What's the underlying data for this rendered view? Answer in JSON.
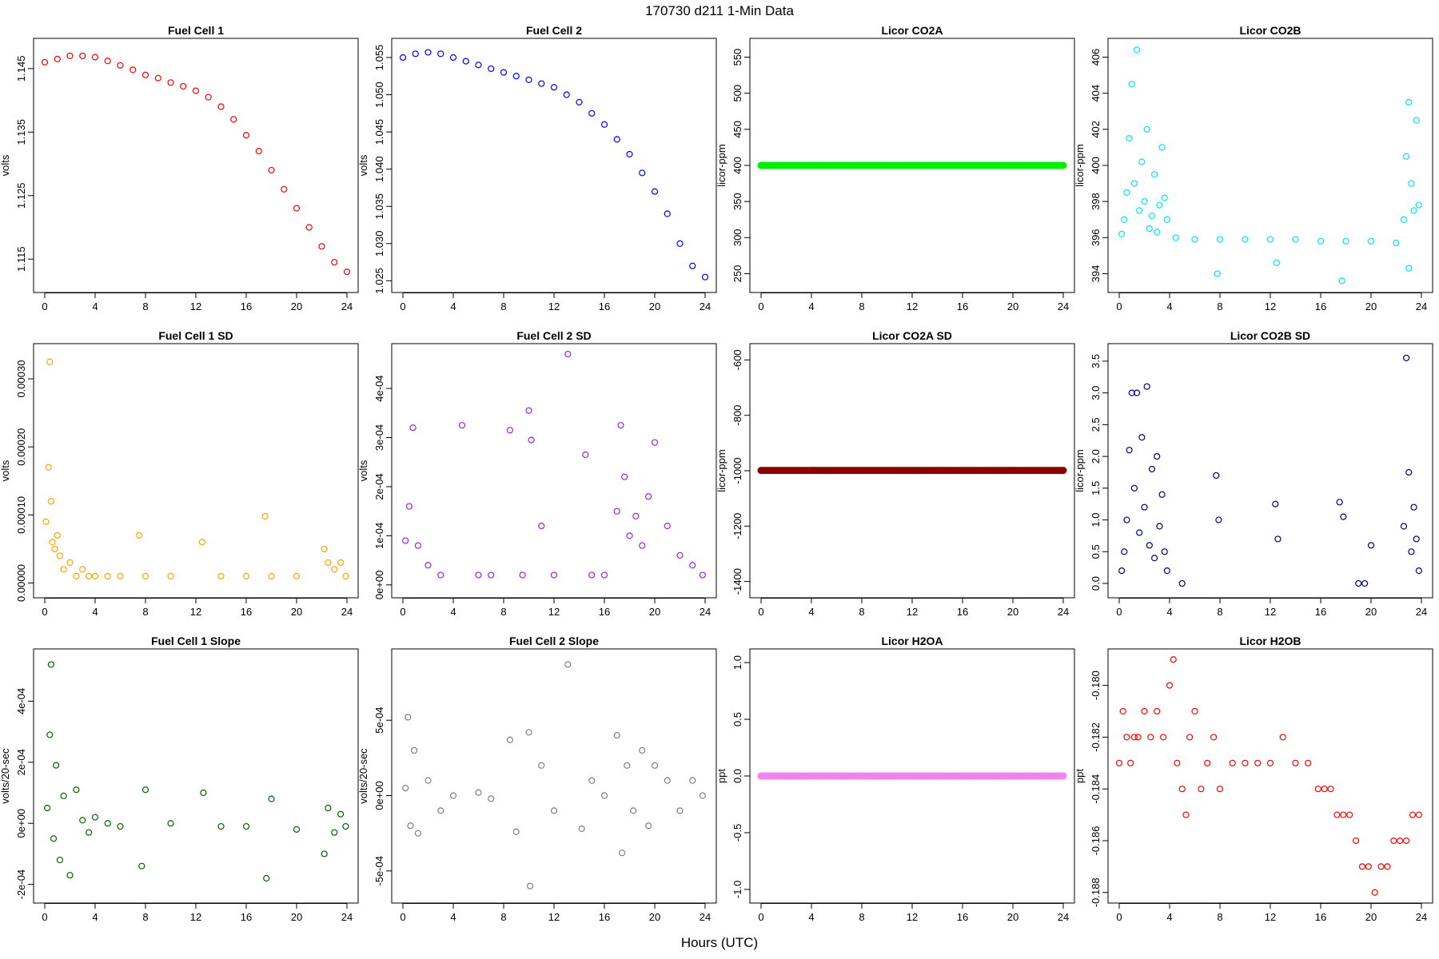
{
  "page": {
    "title": "170730    d211    1-Min Data",
    "xlabel": "Hours (UTC)"
  },
  "chart_data": [
    {
      "id": "fc1",
      "type": "scatter",
      "title": "Fuel Cell 1",
      "ylabel": "volts",
      "color": "#ff0000",
      "xlim": [
        0,
        24
      ],
      "xticks": [
        0,
        4,
        8,
        12,
        16,
        20,
        24
      ],
      "ylim": [
        1.111,
        1.1485
      ],
      "yticks": [
        1.115,
        1.125,
        1.135,
        1.145
      ],
      "ytick_labels": [
        "1.115",
        "1.125",
        "1.135",
        "1.145"
      ],
      "x": [
        0,
        1,
        2,
        3,
        4,
        5,
        6,
        7,
        8,
        9,
        10,
        11,
        12,
        13,
        14,
        15,
        16,
        17,
        18,
        19,
        20,
        21,
        22,
        23,
        24
      ],
      "y": [
        1.146,
        1.1465,
        1.147,
        1.147,
        1.1468,
        1.1462,
        1.1455,
        1.1448,
        1.144,
        1.1435,
        1.1428,
        1.1422,
        1.1415,
        1.1405,
        1.139,
        1.137,
        1.1345,
        1.132,
        1.129,
        1.126,
        1.123,
        1.12,
        1.117,
        1.1145,
        1.113
      ]
    },
    {
      "id": "fc2",
      "type": "scatter",
      "title": "Fuel Cell 2",
      "ylabel": "volts",
      "color": "#0000ff",
      "xlim": [
        0,
        24
      ],
      "xticks": [
        0,
        4,
        8,
        12,
        16,
        20,
        24
      ],
      "ylim": [
        1.0245,
        1.0565
      ],
      "yticks": [
        1.025,
        1.03,
        1.035,
        1.04,
        1.045,
        1.05,
        1.055
      ],
      "ytick_labels": [
        "1.025",
        "1.030",
        "1.035",
        "1.040",
        "1.045",
        "1.050",
        "1.055"
      ],
      "x": [
        0,
        1,
        2,
        3,
        4,
        5,
        6,
        7,
        8,
        9,
        10,
        11,
        12,
        13,
        14,
        15,
        16,
        17,
        18,
        19,
        20,
        21,
        22,
        23,
        24
      ],
      "y": [
        1.055,
        1.0555,
        1.0557,
        1.0555,
        1.055,
        1.0545,
        1.054,
        1.0535,
        1.053,
        1.0525,
        1.052,
        1.0515,
        1.051,
        1.05,
        1.049,
        1.0475,
        1.046,
        1.044,
        1.042,
        1.0395,
        1.037,
        1.034,
        1.03,
        1.027,
        1.0255
      ]
    },
    {
      "id": "co2a",
      "type": "scatter",
      "title": "Licor CO2A",
      "ylabel": "licor-ppm",
      "color": "#00ee00",
      "xlim": [
        0,
        24
      ],
      "xticks": [
        0,
        4,
        8,
        12,
        16,
        20,
        24
      ],
      "ylim": [
        235,
        565
      ],
      "yticks": [
        250,
        300,
        350,
        400,
        450,
        500,
        550
      ],
      "ytick_labels": [
        "250",
        "300",
        "350",
        "400",
        "450",
        "500",
        "550"
      ],
      "x": [
        0,
        24
      ],
      "y": [
        400,
        400
      ]
    },
    {
      "id": "co2b",
      "type": "scatter",
      "title": "Licor CO2B",
      "ylabel": "licor-ppm",
      "color": "#00e5ee",
      "xlim": [
        0,
        24
      ],
      "xticks": [
        0,
        4,
        8,
        12,
        16,
        20,
        24
      ],
      "ylim": [
        393.4,
        406.6
      ],
      "yticks": [
        394,
        396,
        398,
        400,
        402,
        404,
        406
      ],
      "ytick_labels": [
        "394",
        "396",
        "398",
        "400",
        "402",
        "404",
        "406"
      ],
      "x": [
        0.2,
        0.4,
        0.6,
        0.8,
        1.0,
        1.2,
        1.4,
        1.6,
        1.8,
        2.0,
        2.2,
        2.4,
        2.6,
        2.8,
        3.0,
        3.2,
        3.4,
        3.6,
        3.8,
        4.5,
        6,
        8,
        10,
        12,
        14,
        16,
        18,
        20,
        22,
        22.6,
        22.8,
        23.0,
        23.2,
        23.4,
        23.6,
        23.8,
        7.8,
        12.5,
        17.7,
        23.0
      ],
      "y": [
        396.2,
        397.0,
        398.5,
        401.5,
        404.5,
        399.0,
        406.4,
        397.5,
        400.2,
        398.0,
        402.0,
        396.5,
        397.2,
        399.5,
        396.3,
        397.8,
        401.0,
        398.2,
        397.0,
        396.0,
        395.9,
        395.9,
        395.9,
        395.9,
        395.9,
        395.8,
        395.8,
        395.8,
        395.7,
        397.0,
        400.5,
        403.5,
        399.0,
        397.5,
        402.5,
        397.8,
        394.0,
        394.6,
        393.6,
        394.3
      ]
    },
    {
      "id": "fc1sd",
      "type": "scatter",
      "title": "Fuel Cell 1 SD",
      "ylabel": "volts",
      "color": "#ffa500",
      "xlim": [
        0,
        24
      ],
      "xticks": [
        0,
        4,
        8,
        12,
        16,
        20,
        24
      ],
      "ylim": [
        -1e-05,
        0.00034
      ],
      "yticks": [
        0,
        0.0001,
        0.0002,
        0.0003
      ],
      "ytick_labels": [
        "0.00000",
        "0.00010",
        "0.00020",
        "0.00030"
      ],
      "x": [
        0.1,
        0.3,
        0.4,
        0.5,
        0.6,
        0.8,
        1.0,
        1.2,
        1.5,
        2.0,
        2.5,
        3.0,
        3.5,
        4.0,
        5.0,
        6.0,
        7.5,
        8.0,
        10,
        12.5,
        14,
        16,
        17.5,
        18,
        20,
        22.2,
        22.5,
        23,
        23.5,
        23.9
      ],
      "y": [
        9e-05,
        0.00017,
        0.000325,
        0.00012,
        6e-05,
        5e-05,
        7e-05,
        4e-05,
        2e-05,
        3e-05,
        1e-05,
        2e-05,
        1e-05,
        1e-05,
        1e-05,
        1e-05,
        7e-05,
        1e-05,
        1e-05,
        6e-05,
        1e-05,
        1e-05,
        9.8e-05,
        1e-05,
        1e-05,
        5e-05,
        3e-05,
        2e-05,
        3e-05,
        1e-05
      ]
    },
    {
      "id": "fc2sd",
      "type": "scatter",
      "title": "Fuel Cell 2 SD",
      "ylabel": "volts",
      "color": "#a020f0",
      "xlim": [
        0,
        24
      ],
      "xticks": [
        0,
        4,
        8,
        12,
        16,
        20,
        24
      ],
      "ylim": [
        -1e-05,
        0.000475
      ],
      "yticks": [
        0,
        0.0001,
        0.0002,
        0.0003,
        0.0004
      ],
      "ytick_labels": [
        "0e+00",
        "1e-04",
        "2e-04",
        "3e-04",
        "4e-04"
      ],
      "x": [
        0.2,
        0.5,
        0.8,
        1.2,
        2.0,
        3.0,
        4.7,
        6.0,
        7.0,
        8.5,
        9.5,
        10.0,
        10.2,
        11.0,
        12.0,
        13.1,
        14.5,
        15.0,
        16.0,
        17.0,
        17.3,
        17.6,
        18.0,
        18.5,
        19.0,
        19.5,
        20.0,
        21.0,
        22.0,
        23.0,
        23.8
      ],
      "y": [
        9e-05,
        0.00016,
        0.00032,
        8e-05,
        4e-05,
        2e-05,
        0.000325,
        2e-05,
        2e-05,
        0.000315,
        2e-05,
        0.000355,
        0.000295,
        0.00012,
        2e-05,
        0.00047,
        0.000265,
        2e-05,
        2e-05,
        0.00015,
        0.000325,
        0.00022,
        0.0001,
        0.00014,
        8e-05,
        0.00018,
        0.00029,
        0.00012,
        6e-05,
        4e-05,
        2e-05
      ]
    },
    {
      "id": "co2asd",
      "type": "scatter",
      "title": "Licor CO2A SD",
      "ylabel": "licor-ppm",
      "color": "#8b0000",
      "xlim": [
        0,
        24
      ],
      "xticks": [
        0,
        4,
        8,
        12,
        16,
        20,
        24
      ],
      "ylim": [
        -1430,
        -570
      ],
      "yticks": [
        -1400,
        -1200,
        -1000,
        -800,
        -600
      ],
      "ytick_labels": [
        "-1400",
        "-1200",
        "-1000",
        "-800",
        "-600"
      ],
      "x": [
        0,
        24
      ],
      "y": [
        -999,
        -999
      ]
    },
    {
      "id": "co2bsd",
      "type": "scatter",
      "title": "Licor CO2B SD",
      "ylabel": "licor-ppm",
      "color": "#000080",
      "xlim": [
        0,
        24
      ],
      "xticks": [
        0,
        4,
        8,
        12,
        16,
        20,
        24
      ],
      "ylim": [
        -0.1,
        3.65
      ],
      "yticks": [
        0,
        0.5,
        1,
        1.5,
        2,
        2.5,
        3,
        3.5
      ],
      "ytick_labels": [
        "0.0",
        "0.5",
        "1.0",
        "1.5",
        "2.0",
        "2.5",
        "3.0",
        "3.5"
      ],
      "x": [
        0.2,
        0.4,
        0.6,
        0.8,
        1.0,
        1.2,
        1.4,
        1.6,
        1.8,
        2.0,
        2.2,
        2.4,
        2.6,
        2.8,
        3.0,
        3.2,
        3.4,
        3.6,
        3.8,
        5,
        7.7,
        7.9,
        12.4,
        12.6,
        17.5,
        17.8,
        19.0,
        19.5,
        20.0,
        22.6,
        22.8,
        23.0,
        23.2,
        23.4,
        23.6,
        23.8
      ],
      "y": [
        0.2,
        0.5,
        1.0,
        2.1,
        3.0,
        1.5,
        3.0,
        0.8,
        2.3,
        1.2,
        3.1,
        0.6,
        1.8,
        0.4,
        2.0,
        0.9,
        1.4,
        0.5,
        0.2,
        0.0,
        1.7,
        1.0,
        1.25,
        0.7,
        1.28,
        1.05,
        0.0,
        0.0,
        0.6,
        0.9,
        3.55,
        1.75,
        0.5,
        1.2,
        0.7,
        0.2
      ]
    },
    {
      "id": "fc1slope",
      "type": "scatter",
      "title": "Fuel Cell 1 Slope",
      "ylabel": "volts/20-sec",
      "color": "#006400",
      "xlim": [
        0,
        24
      ],
      "xticks": [
        0,
        4,
        8,
        12,
        16,
        20,
        24
      ],
      "ylim": [
        -0.000235,
        0.000545
      ],
      "yticks": [
        -0.0002,
        0,
        0.0002,
        0.0004
      ],
      "ytick_labels": [
        "-2e-04",
        "0e+00",
        "2e-04",
        "4e-04"
      ],
      "x": [
        0.2,
        0.4,
        0.5,
        0.7,
        0.9,
        1.2,
        1.5,
        2.0,
        2.5,
        3.0,
        3.5,
        4.0,
        5.0,
        6.0,
        7.7,
        8.0,
        10,
        12.6,
        14,
        16,
        17.6,
        18,
        20,
        22.2,
        22.5,
        23,
        23.5,
        23.9
      ],
      "y": [
        5e-05,
        0.00029,
        0.00052,
        -5e-05,
        0.00019,
        -0.00012,
        9e-05,
        -0.00017,
        0.00011,
        1e-05,
        -3e-05,
        2e-05,
        0.0,
        -1e-05,
        -0.00014,
        0.00011,
        0.0,
        0.0001,
        -1e-05,
        -1e-05,
        -0.00018,
        8e-05,
        -2e-05,
        -0.0001,
        5e-05,
        -3e-05,
        3e-05,
        -1e-05
      ]
    },
    {
      "id": "fc2slope",
      "type": "scatter",
      "title": "Fuel Cell 2 Slope",
      "ylabel": "volts/20-sec",
      "color": "#808080",
      "xlim": [
        0,
        24
      ],
      "xticks": [
        0,
        4,
        8,
        12,
        16,
        20,
        24
      ],
      "ylim": [
        -0.00066,
        0.00092
      ],
      "yticks": [
        -0.0005,
        0,
        0.0005
      ],
      "ytick_labels": [
        "-5e-04",
        "0e+00",
        "5e-04"
      ],
      "x": [
        0.2,
        0.4,
        0.6,
        0.9,
        1.2,
        2.0,
        3.0,
        4.0,
        6.0,
        7.0,
        8.5,
        9.0,
        10.0,
        10.1,
        11.0,
        12.0,
        13.1,
        14.2,
        15.0,
        16.0,
        17.0,
        17.4,
        17.8,
        18.3,
        19.0,
        19.5,
        20.0,
        21.0,
        22.0,
        23.0,
        23.8
      ],
      "y": [
        5e-05,
        0.00052,
        -0.0002,
        0.0003,
        -0.00025,
        0.0001,
        -0.0001,
        0.0,
        2e-05,
        -2e-05,
        0.00037,
        -0.00024,
        0.00042,
        -0.0006,
        0.0002,
        -0.0001,
        0.00087,
        -0.00022,
        0.0001,
        0.0,
        0.0004,
        -0.00038,
        0.0002,
        -0.0001,
        0.0003,
        -0.0002,
        0.0002,
        0.0001,
        -0.0001,
        0.0001,
        0.0
      ]
    },
    {
      "id": "h2oa",
      "type": "scatter",
      "title": "Licor H2OA",
      "ylabel": "ppt",
      "color": "#ee82ee",
      "xlim": [
        0,
        24
      ],
      "xticks": [
        0,
        4,
        8,
        12,
        16,
        20,
        24
      ],
      "ylim": [
        -1.05,
        1.05
      ],
      "yticks": [
        -1.0,
        -0.5,
        0.0,
        0.5,
        1.0
      ],
      "ytick_labels": [
        "-1.0",
        "-0.5",
        "0.0",
        "0.5",
        "1.0"
      ],
      "x": [
        0,
        24
      ],
      "y": [
        0,
        0
      ]
    },
    {
      "id": "h2ob",
      "type": "scatter",
      "title": "Licor H2OB",
      "ylabel": "ppt",
      "color": "#ff0000",
      "xlim": [
        0,
        24
      ],
      "xticks": [
        0,
        4,
        8,
        12,
        16,
        20,
        24
      ],
      "ylim": [
        -0.1881,
        -0.1789
      ],
      "yticks": [
        -0.188,
        -0.186,
        -0.184,
        -0.182,
        -0.18
      ],
      "ytick_labels": [
        "-0.188",
        "-0.186",
        "-0.184",
        "-0.182",
        "-0.180"
      ],
      "x": [
        0.0,
        0.3,
        0.6,
        0.9,
        1.2,
        1.5,
        2.0,
        2.5,
        3.0,
        3.5,
        4.0,
        4.3,
        4.6,
        5.0,
        5.3,
        5.6,
        6.0,
        6.5,
        7.0,
        7.5,
        8.0,
        9.0,
        10.0,
        11.0,
        12.0,
        13.0,
        14.0,
        15.0,
        15.8,
        16.3,
        16.8,
        17.3,
        17.8,
        18.3,
        18.8,
        19.3,
        19.8,
        20.3,
        20.8,
        21.3,
        21.8,
        22.3,
        22.8,
        23.3,
        23.8
      ],
      "y": [
        -0.183,
        -0.181,
        -0.182,
        -0.183,
        -0.182,
        -0.182,
        -0.181,
        -0.182,
        -0.181,
        -0.182,
        -0.18,
        -0.179,
        -0.183,
        -0.184,
        -0.185,
        -0.182,
        -0.181,
        -0.184,
        -0.183,
        -0.182,
        -0.184,
        -0.183,
        -0.183,
        -0.183,
        -0.183,
        -0.182,
        -0.183,
        -0.183,
        -0.184,
        -0.184,
        -0.184,
        -0.185,
        -0.185,
        -0.185,
        -0.186,
        -0.187,
        -0.187,
        -0.188,
        -0.187,
        -0.187,
        -0.186,
        -0.186,
        -0.186,
        -0.185,
        -0.185
      ]
    }
  ]
}
